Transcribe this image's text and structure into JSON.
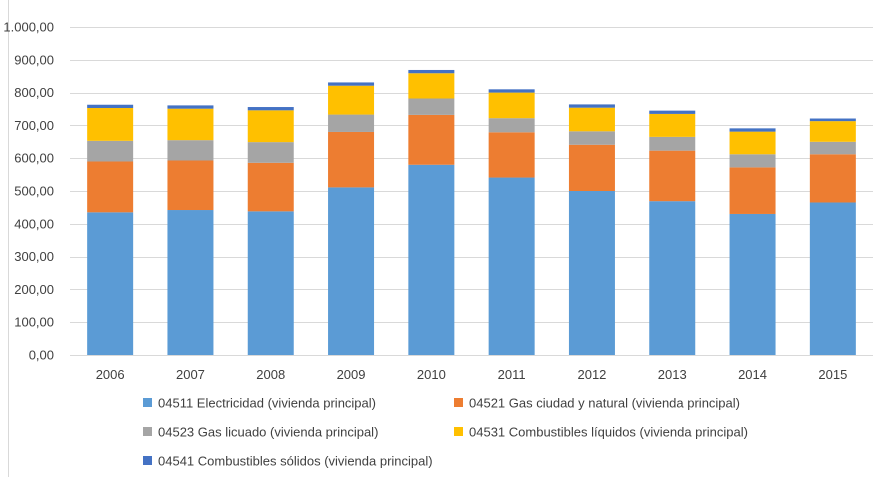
{
  "chart_data": {
    "type": "bar",
    "stacked": true,
    "categories": [
      "2006",
      "2007",
      "2008",
      "2009",
      "2010",
      "2011",
      "2012",
      "2013",
      "2014",
      "2015"
    ],
    "series": [
      {
        "name": "04511 Electricidad (vivienda principal)",
        "color": "#5B9BD5",
        "values": [
          435,
          442,
          438,
          511,
          580,
          541,
          500,
          469,
          430,
          465
        ]
      },
      {
        "name": "04521 Gas ciudad y natural (vivienda principal)",
        "color": "#ED7D31",
        "values": [
          155,
          151,
          148,
          169,
          152,
          138,
          141,
          154,
          142,
          147
        ]
      },
      {
        "name": "04523 Gas licuado (vivienda principal)",
        "color": "#A5A5A5",
        "values": [
          63,
          62,
          63,
          53,
          50,
          43,
          41,
          42,
          40,
          38
        ]
      },
      {
        "name": "04531 Combustibles líquidos (vivienda principal)",
        "color": "#FFC000",
        "values": [
          100,
          96,
          97,
          88,
          77,
          78,
          72,
          70,
          69,
          63
        ]
      },
      {
        "name": "04541 Combustibles sólidos (vivienda principal)",
        "color": "#4472C4",
        "values": [
          10,
          10,
          10,
          10,
          10,
          10,
          10,
          10,
          10,
          8
        ]
      }
    ],
    "yticks": [
      "0,00",
      "100,00",
      "200,00",
      "300,00",
      "400,00",
      "500,00",
      "600,00",
      "700,00",
      "800,00",
      "900,00",
      "1.000,00"
    ],
    "ylim": [
      0,
      1000
    ],
    "grid": true,
    "legend_position": "bottom"
  }
}
